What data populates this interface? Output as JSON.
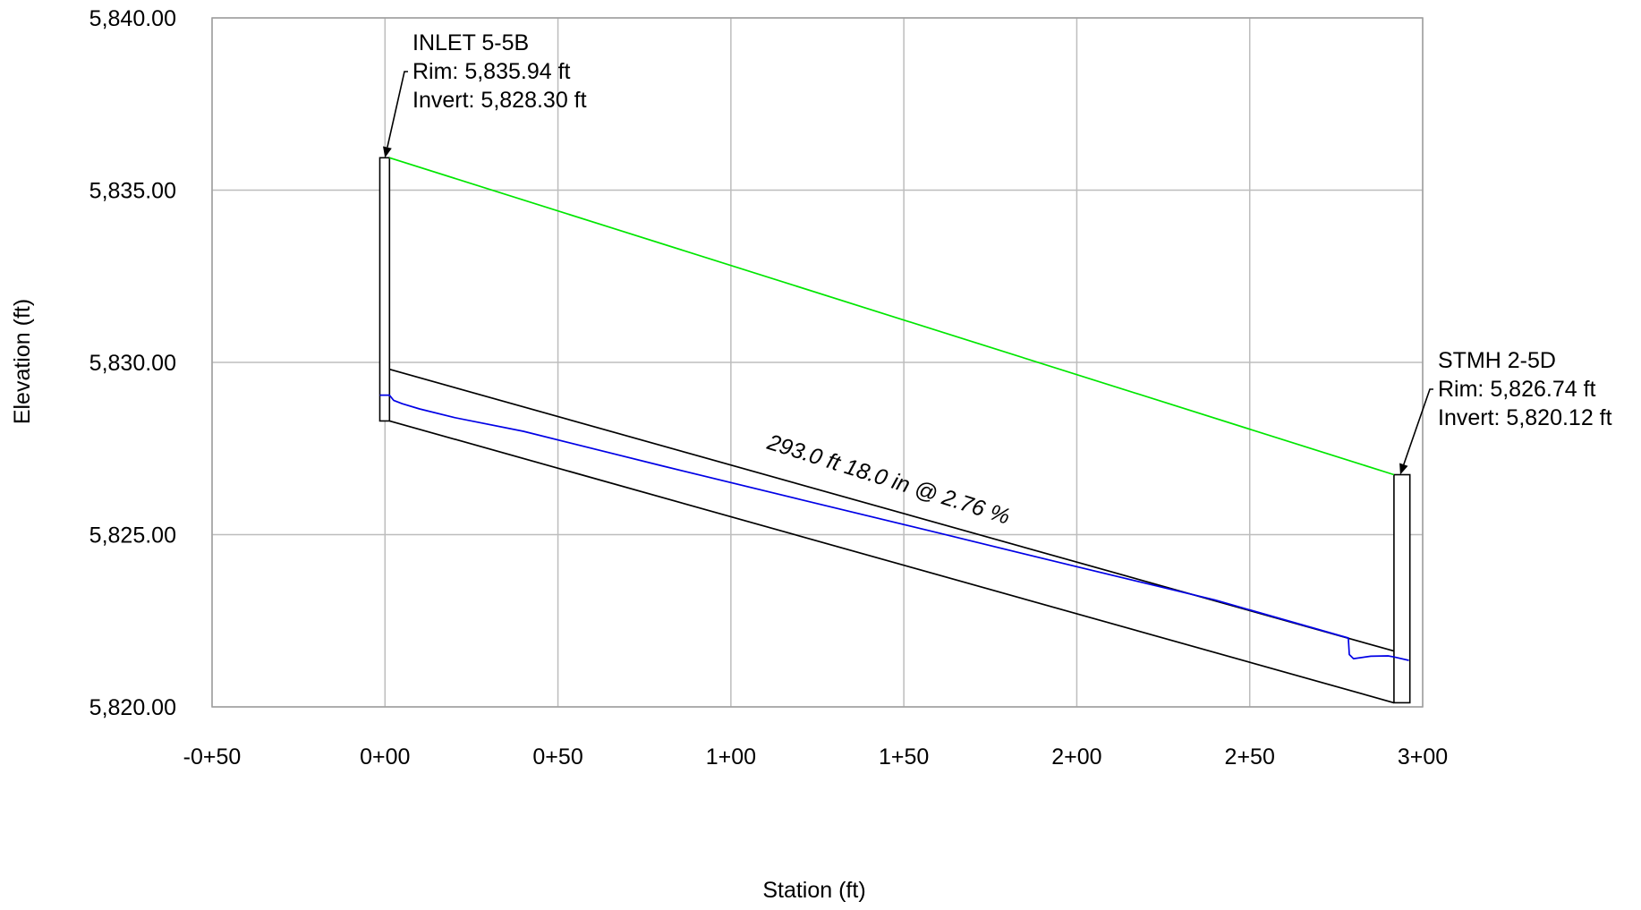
{
  "chart_data": {
    "type": "line",
    "title": "",
    "xlabel": "Station (ft)",
    "ylabel": "Elevation (ft)",
    "xlim": [
      -50,
      300
    ],
    "ylim": [
      5820,
      5840
    ],
    "grid": true,
    "x_ticks": [
      {
        "value": -50,
        "label": "-0+50"
      },
      {
        "value": 0,
        "label": "0+00"
      },
      {
        "value": 50,
        "label": "0+50"
      },
      {
        "value": 100,
        "label": "1+00"
      },
      {
        "value": 150,
        "label": "1+50"
      },
      {
        "value": 200,
        "label": "2+00"
      },
      {
        "value": 250,
        "label": "2+50"
      },
      {
        "value": 300,
        "label": "3+00"
      }
    ],
    "y_ticks": [
      {
        "value": 5820,
        "label": "5,820.00"
      },
      {
        "value": 5825,
        "label": "5,825.00"
      },
      {
        "value": 5830,
        "label": "5,830.00"
      },
      {
        "value": 5835,
        "label": "5,835.00"
      },
      {
        "value": 5840,
        "label": "5,840.00"
      }
    ],
    "series": [
      {
        "key": "ground",
        "color": "#00e600",
        "x": [
          1.3,
          291.7
        ],
        "y": [
          5835.94,
          5826.74
        ]
      },
      {
        "key": "pipe_crown",
        "color": "#000000",
        "x": [
          1.3,
          291.7
        ],
        "y": [
          5829.8,
          5821.62
        ]
      },
      {
        "key": "pipe_invert",
        "color": "#000000",
        "x": [
          1.3,
          291.7
        ],
        "y": [
          5828.3,
          5820.12
        ]
      },
      {
        "key": "hydraulic_grade",
        "color": "#0000e6",
        "x": [
          -1.5,
          1.3,
          2.5,
          5,
          10,
          20,
          40,
          80,
          120,
          160,
          200,
          240,
          278.5,
          278.8,
          280,
          285,
          290,
          291.7,
          296
        ],
        "y": [
          5829.05,
          5829.05,
          5828.9,
          5828.8,
          5828.65,
          5828.4,
          5828.0,
          5827.0,
          5826.02,
          5825.05,
          5824.07,
          5823.1,
          5822.0,
          5821.52,
          5821.4,
          5821.47,
          5821.48,
          5821.45,
          5821.35
        ]
      }
    ],
    "structures": [
      {
        "key": "inlet",
        "station_left": -1.5,
        "station_right": 1.3,
        "bottom": 5828.3,
        "top": 5835.94
      },
      {
        "key": "manhole",
        "station_left": 291.7,
        "station_right": 296.3,
        "bottom": 5820.12,
        "top": 5826.74
      }
    ],
    "annotations": {
      "inlet": {
        "name": "INLET 5-5B",
        "rim": "Rim: 5,835.94 ft",
        "invert": "Invert: 5,828.30 ft",
        "arrow_to_station": 0,
        "arrow_to_elevation": 5835.94
      },
      "manhole": {
        "name": "STMH 2-5D",
        "rim": "Rim: 5,826.74 ft",
        "invert": "Invert: 5,820.12 ft",
        "arrow_to_station": 293.5,
        "arrow_to_elevation": 5826.74
      },
      "pipe": {
        "text": "293.0 ft 18.0 in @ 2.76 %",
        "station": 145,
        "elevation": 5826.4
      }
    }
  }
}
